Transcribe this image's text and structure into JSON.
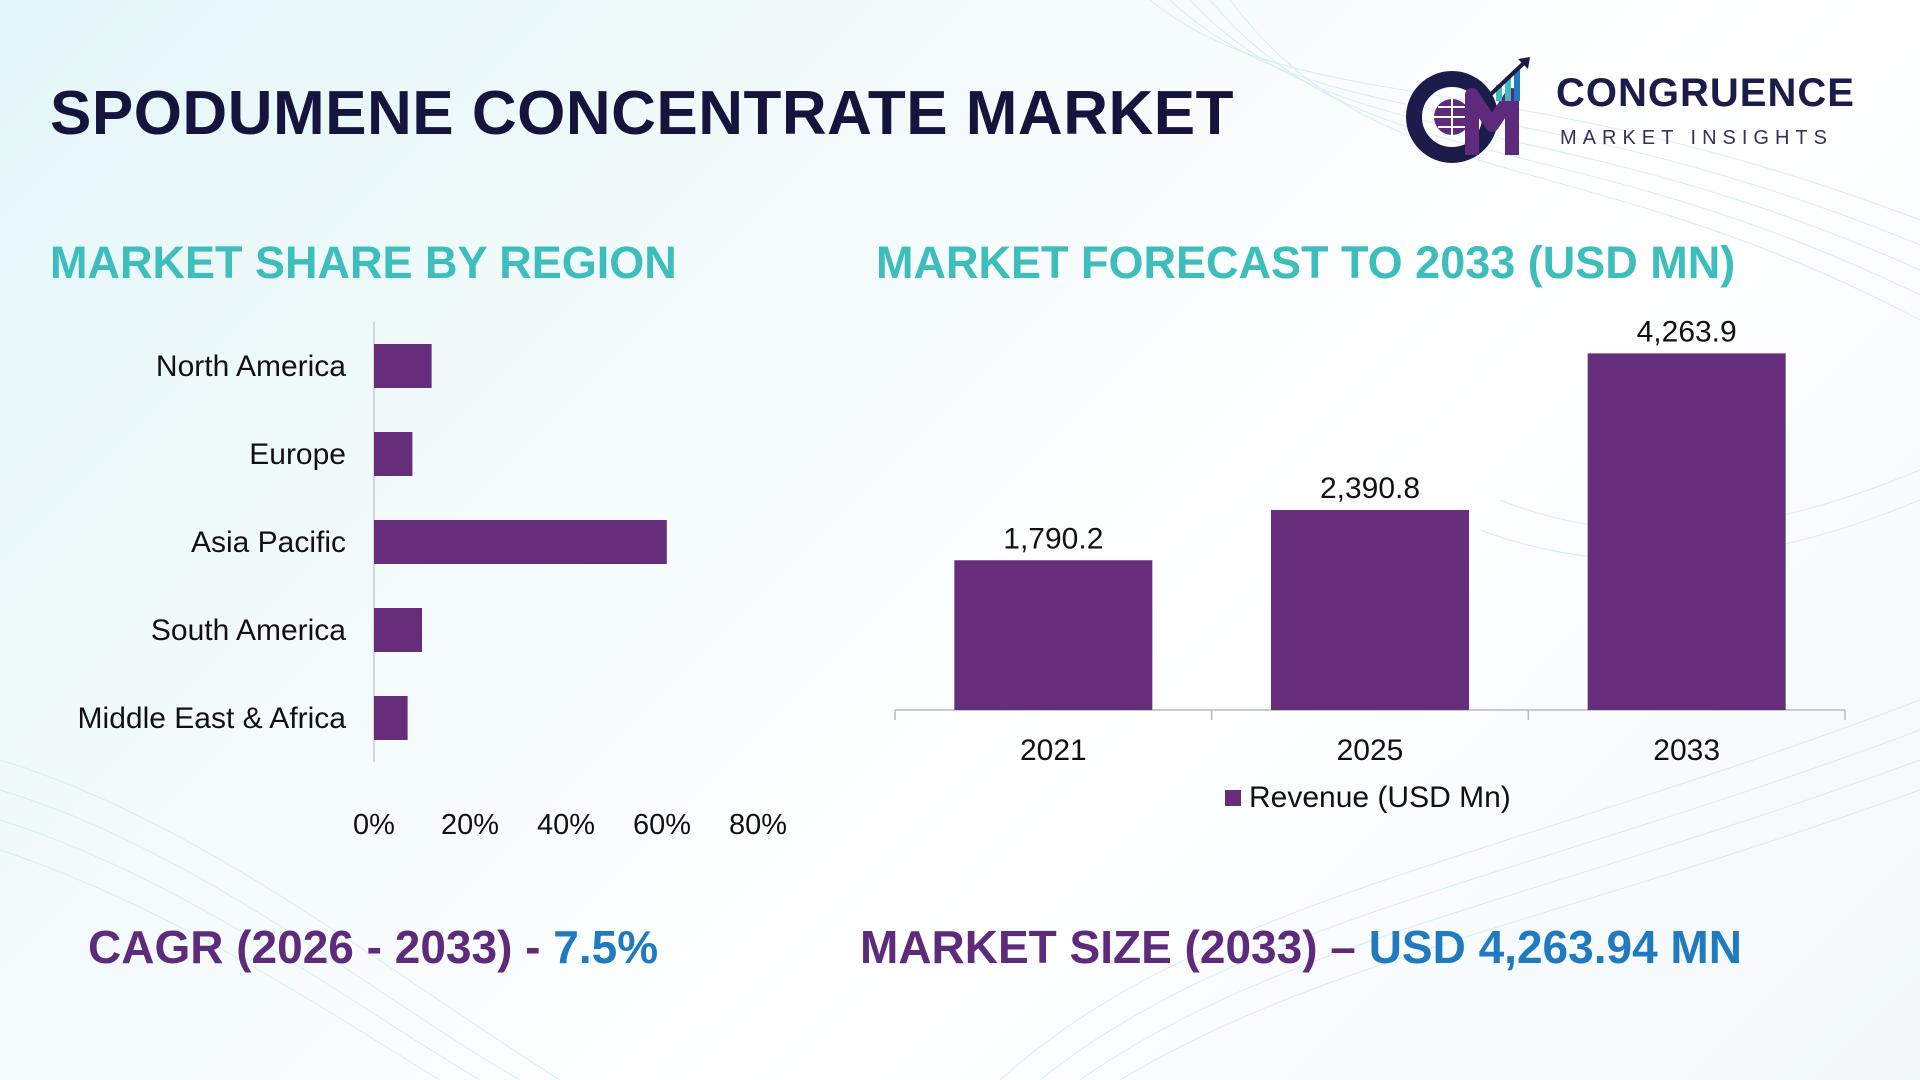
{
  "header": {
    "title": "SPODUMENE CONCENTRATE MARKET",
    "logo_name": "CONGRUENCE",
    "logo_tagline": "MARKET INSIGHTS"
  },
  "colors": {
    "bar": "#652d7a",
    "section_title": "#3dbdbc",
    "kpi_label": "#5e2b7c",
    "kpi_value": "#1f7abf",
    "title": "#14143c"
  },
  "chart_data": [
    {
      "type": "bar",
      "orientation": "horizontal",
      "title": "MARKET SHARE BY REGION",
      "categories": [
        "North America",
        "Europe",
        "Asia Pacific",
        "South America",
        "Middle East & Africa"
      ],
      "values": [
        12,
        8,
        61,
        10,
        7
      ],
      "xlim": [
        0,
        80
      ],
      "xticks": [
        "0%",
        "20%",
        "40%",
        "60%",
        "80%"
      ],
      "grid": false,
      "legend": false
    },
    {
      "type": "bar",
      "orientation": "vertical",
      "title": "MARKET FORECAST TO 2033 (USD MN)",
      "categories": [
        "2021",
        "2025",
        "2033"
      ],
      "series": [
        {
          "name": "Revenue (USD Mn)",
          "values": [
            1790.2,
            2390.8,
            4263.9
          ]
        }
      ],
      "data_labels": [
        "1,790.2",
        "2,390.8",
        "4,263.9"
      ],
      "ylim": [
        0,
        4400
      ],
      "grid": false,
      "legend": "bottom"
    }
  ],
  "kpis": {
    "cagr_label": "CAGR (2026 - 2033) - ",
    "cagr_value": "7.5%",
    "size_label": "MARKET SIZE (2033) – ",
    "size_value": "USD 4,263.94 MN"
  }
}
